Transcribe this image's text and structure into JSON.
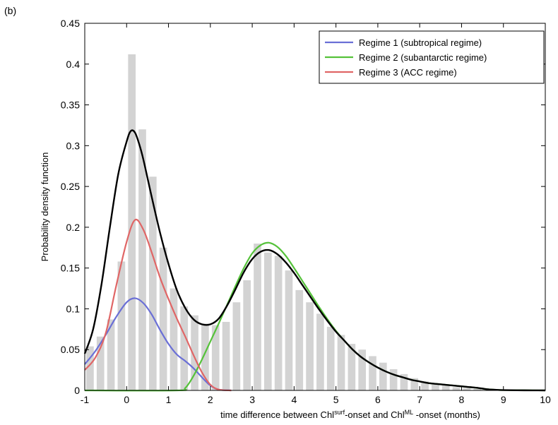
{
  "panel_label": "(b)",
  "chart_data": {
    "type": "line",
    "xlabel": {
      "prefix": "time difference between Chl",
      "sup1": "surf",
      "middle": "-onset and Chl",
      "sup2": "ML",
      "suffix": " -onset (months)"
    },
    "ylabel": "Probability density function",
    "xlim": [
      -1,
      10
    ],
    "ylim": [
      0,
      0.45
    ],
    "xticks": [
      "-1",
      "0",
      "1",
      "2",
      "3",
      "4",
      "5",
      "6",
      "7",
      "8",
      "9",
      "10"
    ],
    "yticks": [
      "0",
      "0.05",
      "0.1",
      "0.15",
      "0.2",
      "0.25",
      "0.3",
      "0.35",
      "0.4",
      "0.45"
    ],
    "grid": false,
    "legend_position": "top-right",
    "histogram": {
      "bin_width": 0.25,
      "color": "#d3d3d3",
      "bins": [
        {
          "x": -0.875,
          "y": 0.054
        },
        {
          "x": -0.625,
          "y": 0.066
        },
        {
          "x": -0.375,
          "y": 0.087
        },
        {
          "x": -0.125,
          "y": 0.158
        },
        {
          "x": 0.125,
          "y": 0.412
        },
        {
          "x": 0.375,
          "y": 0.32
        },
        {
          "x": 0.625,
          "y": 0.262
        },
        {
          "x": 0.875,
          "y": 0.175
        },
        {
          "x": 1.125,
          "y": 0.125
        },
        {
          "x": 1.375,
          "y": 0.103
        },
        {
          "x": 1.625,
          "y": 0.092
        },
        {
          "x": 1.875,
          "y": 0.082
        },
        {
          "x": 2.125,
          "y": 0.08
        },
        {
          "x": 2.375,
          "y": 0.084
        },
        {
          "x": 2.625,
          "y": 0.108
        },
        {
          "x": 2.875,
          "y": 0.135
        },
        {
          "x": 3.125,
          "y": 0.18
        },
        {
          "x": 3.375,
          "y": 0.169
        },
        {
          "x": 3.625,
          "y": 0.165
        },
        {
          "x": 3.875,
          "y": 0.147
        },
        {
          "x": 4.125,
          "y": 0.123
        },
        {
          "x": 4.375,
          "y": 0.108
        },
        {
          "x": 4.625,
          "y": 0.094
        },
        {
          "x": 4.875,
          "y": 0.078
        },
        {
          "x": 5.125,
          "y": 0.068
        },
        {
          "x": 5.375,
          "y": 0.057
        },
        {
          "x": 5.625,
          "y": 0.05
        },
        {
          "x": 5.875,
          "y": 0.042
        },
        {
          "x": 6.125,
          "y": 0.034
        },
        {
          "x": 6.375,
          "y": 0.026
        },
        {
          "x": 6.625,
          "y": 0.02
        },
        {
          "x": 6.875,
          "y": 0.015
        },
        {
          "x": 7.125,
          "y": 0.011
        },
        {
          "x": 7.375,
          "y": 0.008
        },
        {
          "x": 7.625,
          "y": 0.006
        },
        {
          "x": 7.875,
          "y": 0.004
        },
        {
          "x": 8.125,
          "y": 0.003
        },
        {
          "x": 8.375,
          "y": 0.002
        }
      ]
    },
    "series": [
      {
        "name": "Regime 1 (subtropical regime)",
        "color": "#6a6fd6",
        "x": [
          -1,
          -0.75,
          -0.5,
          -0.25,
          0,
          0.2,
          0.4,
          0.6,
          0.8,
          1.0,
          1.2,
          1.4,
          1.6,
          1.8,
          2.0,
          2.2,
          2.5
        ],
        "y": [
          0.032,
          0.048,
          0.068,
          0.09,
          0.108,
          0.113,
          0.107,
          0.093,
          0.074,
          0.057,
          0.044,
          0.036,
          0.027,
          0.016,
          0.006,
          0.001,
          0
        ]
      },
      {
        "name": "Regime 2 (subantarctic regime)",
        "color": "#55c23a",
        "x": [
          -1,
          1.2,
          1.4,
          1.6,
          1.8,
          2.0,
          2.2,
          2.4,
          2.6,
          2.8,
          3.0,
          3.2,
          3.4,
          3.6,
          3.8,
          4.0,
          4.2,
          4.4,
          4.6,
          4.8,
          5.0,
          5.2,
          5.4,
          5.6,
          5.8,
          6.0,
          6.2,
          6.4,
          6.6,
          6.8,
          7.0,
          7.2,
          7.4,
          7.6,
          7.8,
          8.0,
          8.2,
          8.4,
          8.6,
          8.8,
          9.0,
          10
        ],
        "y": [
          0,
          0,
          0.003,
          0.018,
          0.038,
          0.06,
          0.082,
          0.105,
          0.128,
          0.15,
          0.168,
          0.178,
          0.181,
          0.176,
          0.165,
          0.15,
          0.134,
          0.118,
          0.102,
          0.087,
          0.073,
          0.061,
          0.05,
          0.041,
          0.034,
          0.028,
          0.023,
          0.019,
          0.016,
          0.013,
          0.011,
          0.009,
          0.008,
          0.007,
          0.006,
          0.005,
          0.004,
          0.003,
          0.0015,
          0.0008,
          0.0004,
          0
        ]
      },
      {
        "name": "Regime 3 (ACC regime)",
        "color": "#e06666",
        "x": [
          -1,
          -0.75,
          -0.5,
          -0.25,
          0,
          0.2,
          0.4,
          0.6,
          0.8,
          1.0,
          1.2,
          1.4,
          1.6,
          1.8,
          2.0,
          2.2,
          2.5
        ],
        "y": [
          0.025,
          0.04,
          0.07,
          0.128,
          0.182,
          0.209,
          0.197,
          0.169,
          0.138,
          0.112,
          0.088,
          0.066,
          0.043,
          0.022,
          0.007,
          0.001,
          0
        ]
      }
    ],
    "total": {
      "color": "#000000",
      "x": [
        -1,
        -0.8,
        -0.6,
        -0.4,
        -0.2,
        0,
        0.1,
        0.2,
        0.3,
        0.4,
        0.6,
        0.8,
        1.0,
        1.2,
        1.4,
        1.6,
        1.8,
        2.0,
        2.2,
        2.4,
        2.6,
        2.8,
        3.0,
        3.2,
        3.4,
        3.6,
        3.8,
        4.0,
        4.2,
        4.4,
        4.6,
        4.8,
        5.0,
        5.2,
        5.4,
        5.6,
        5.8,
        6.0,
        6.2,
        6.4,
        6.6,
        6.8,
        7.0,
        7.2,
        7.4,
        7.6,
        7.8,
        8.0,
        8.2,
        8.4,
        8.6,
        8.8,
        9.0,
        9.5,
        10
      ],
      "y": [
        0.045,
        0.075,
        0.13,
        0.2,
        0.265,
        0.305,
        0.318,
        0.316,
        0.302,
        0.283,
        0.237,
        0.193,
        0.155,
        0.123,
        0.101,
        0.087,
        0.081,
        0.081,
        0.088,
        0.104,
        0.124,
        0.145,
        0.161,
        0.17,
        0.172,
        0.167,
        0.157,
        0.144,
        0.129,
        0.114,
        0.099,
        0.085,
        0.072,
        0.061,
        0.05,
        0.041,
        0.034,
        0.028,
        0.023,
        0.019,
        0.016,
        0.013,
        0.011,
        0.009,
        0.008,
        0.007,
        0.006,
        0.005,
        0.004,
        0.003,
        0.0015,
        0.0008,
        0.0004,
        0.0001,
        0
      ]
    }
  }
}
